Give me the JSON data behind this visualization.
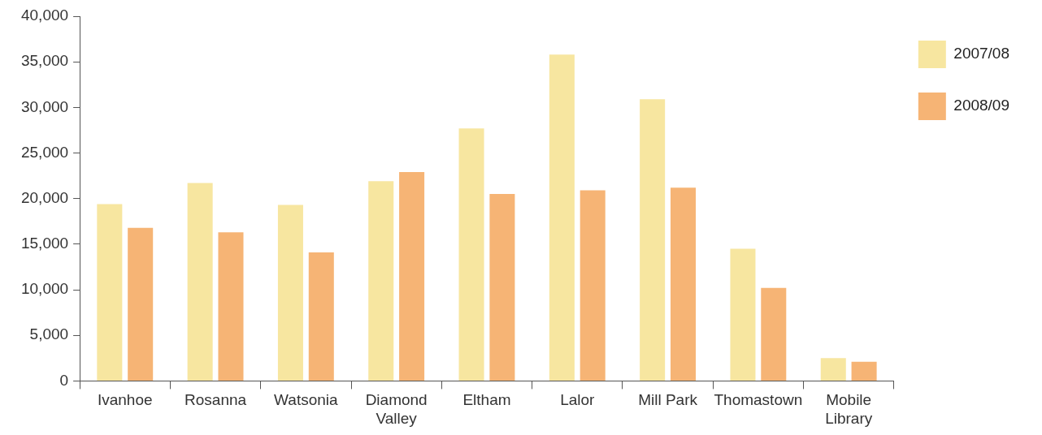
{
  "chart_data": {
    "type": "bar",
    "categories": [
      "Ivanhoe",
      "Rosanna",
      "Watsonia",
      "Diamond Valley",
      "Eltham",
      "Lalor",
      "Mill Park",
      "Thomastown",
      "Mobile Library"
    ],
    "series": [
      {
        "name": "2007/08",
        "color": "#f7e6a0",
        "values": [
          19400,
          21700,
          19300,
          21900,
          27700,
          35800,
          30900,
          14500,
          2500
        ]
      },
      {
        "name": "2008/09",
        "color": "#f6b475",
        "values": [
          16800,
          16300,
          14100,
          22900,
          20500,
          20900,
          21200,
          10200,
          2100
        ]
      }
    ],
    "ylim": [
      0,
      40000
    ],
    "yticks": [
      0,
      {
        "value": 5000,
        "label": "5,000"
      },
      {
        "value": 10000,
        "label": "10,000"
      },
      {
        "value": 15000,
        "label": "15,000"
      },
      {
        "value": 20000,
        "label": "20,000"
      },
      {
        "value": 25000,
        "label": "25,000"
      },
      {
        "value": 30000,
        "label": "30,000"
      },
      {
        "value": 35000,
        "label": "35,000"
      },
      {
        "value": 40000,
        "label": "40,000"
      }
    ],
    "grid": false,
    "legend": "top right"
  }
}
